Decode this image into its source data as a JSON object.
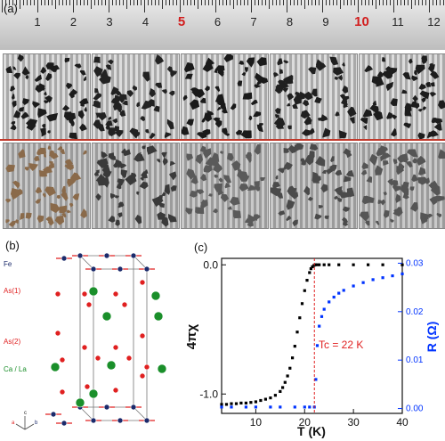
{
  "panel_a": {
    "label": "(a)",
    "ruler_numbers": [
      "1",
      "2",
      "3",
      "4",
      "5",
      "6",
      "7",
      "8",
      "9",
      "10",
      "11",
      "12"
    ],
    "highlighted_numbers": [
      "5",
      "10"
    ],
    "colors": {
      "highlight": "#d21e1e"
    }
  },
  "panel_b": {
    "label": "(b)",
    "legend": {
      "fe": "Fe",
      "as1": "As(1)",
      "as2": "As(2)",
      "cala": "Ca / La"
    },
    "axes_labels": {
      "a": "a",
      "b": "b",
      "c": "c"
    },
    "colors": {
      "fe": "#1b2a6b",
      "as": "#e02020",
      "cala": "#1a8f2a",
      "spin": "#e02020"
    }
  },
  "panel_c": {
    "label": "(c)",
    "tc_annotation": "Tc = 22 K",
    "colors": {
      "chi": "#000000",
      "r": "#0033ff",
      "tc_line": "#e02020"
    }
  },
  "chart_data": {
    "type": "scatter",
    "xlabel": "T (K)",
    "ylabel_left": "4πχ",
    "ylabel_right": "R (Ω)",
    "xlim": [
      3,
      40
    ],
    "xticks": [
      "10",
      "20",
      "30",
      "40"
    ],
    "ylim_left": [
      -1.15,
      0.05
    ],
    "yticks_left": [
      "0.0",
      "-1.0"
    ],
    "ylim_right": [
      -0.001,
      0.031
    ],
    "yticks_right": [
      "0.00",
      "0.01",
      "0.02",
      "0.03"
    ],
    "tc": 22,
    "series": [
      {
        "axis": "left",
        "color": "#000000",
        "x": [
          3,
          4,
          5,
          6,
          7,
          8,
          9,
          10,
          11,
          12,
          13,
          14,
          15,
          15.5,
          16,
          16.5,
          17,
          17.5,
          18,
          18.5,
          19,
          19.5,
          20,
          20.5,
          21,
          21.3,
          21.6,
          21.9,
          22.2,
          22.5,
          23,
          24,
          25,
          27,
          30,
          33,
          36,
          40
        ],
        "y": [
          -1.08,
          -1.08,
          -1.075,
          -1.075,
          -1.07,
          -1.07,
          -1.065,
          -1.06,
          -1.05,
          -1.04,
          -1.03,
          -1.01,
          -0.98,
          -0.95,
          -0.91,
          -0.86,
          -0.8,
          -0.72,
          -0.63,
          -0.52,
          -0.41,
          -0.3,
          -0.2,
          -0.12,
          -0.06,
          -0.03,
          -0.015,
          -0.005,
          0,
          0,
          0,
          0,
          0,
          0,
          0,
          0,
          0,
          0
        ]
      },
      {
        "axis": "right",
        "color": "#0033ff",
        "x": [
          3,
          5,
          8,
          10,
          13,
          15,
          18,
          20,
          21,
          22,
          22.3,
          22.6,
          23,
          23.5,
          24,
          25,
          26,
          27,
          28,
          30,
          32,
          34,
          36,
          38,
          40
        ],
        "y": [
          0.0003,
          0.0003,
          0.0003,
          0.0003,
          0.0003,
          0.0003,
          0.0003,
          0.0003,
          0.0003,
          0.0003,
          0.006,
          0.013,
          0.017,
          0.019,
          0.0205,
          0.022,
          0.023,
          0.0238,
          0.0244,
          0.0253,
          0.026,
          0.0266,
          0.027,
          0.0274,
          0.0278
        ]
      }
    ]
  }
}
